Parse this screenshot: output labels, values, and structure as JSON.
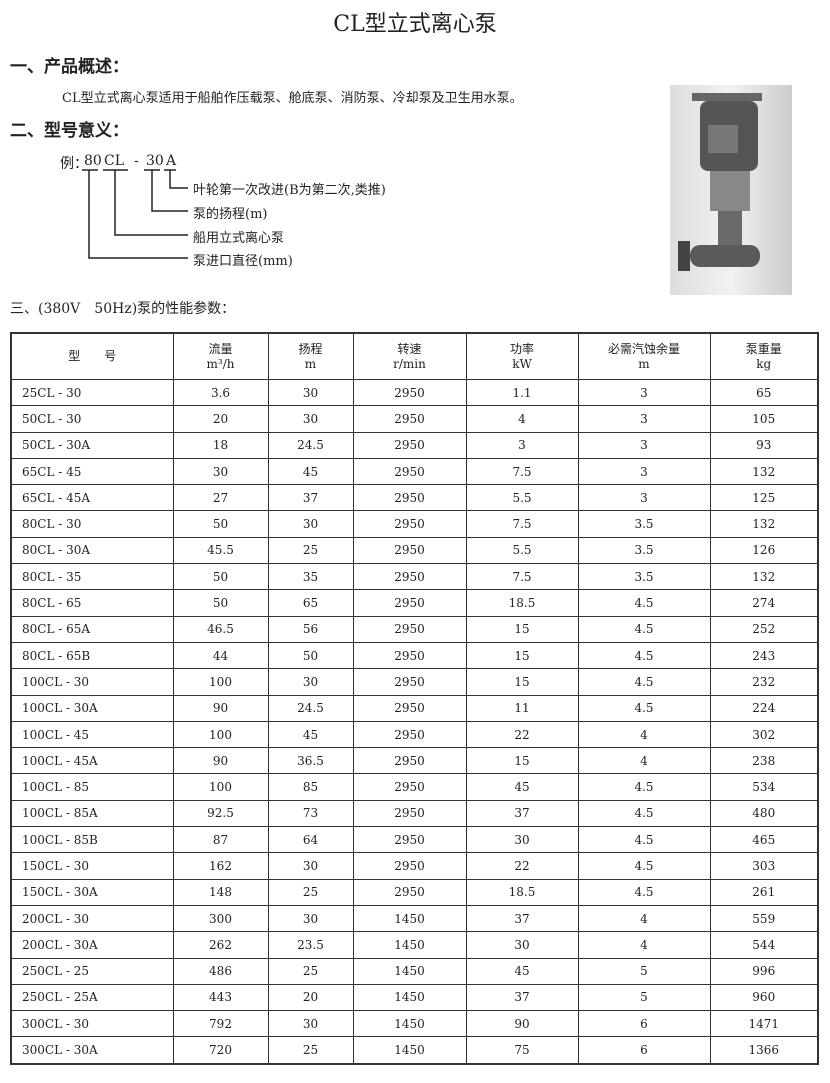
{
  "title": "CL型立式离心泵",
  "section1": {
    "heading": "一、产品概述：",
    "text": "CL型立式离心泵适用于船舶作压载泵、舱底泵、消防泵、冷却泵及卫生用水泵。"
  },
  "section2": {
    "heading": "二、型号意义：",
    "example_prefix": "例：",
    "parts": [
      "80",
      "CL",
      "-",
      "30",
      "A"
    ],
    "labels": [
      "叶轮第一次改进(B为第二次,类推)",
      "泵的扬程(m)",
      "船用立式离心泵",
      "泵进口直径(mm)"
    ]
  },
  "section3": {
    "heading": "三、(380V　50Hz)泵的性能参数："
  },
  "table": {
    "headers": [
      [
        "型　　号",
        ""
      ],
      [
        "流量",
        "m³/h"
      ],
      [
        "扬程",
        "m"
      ],
      [
        "转速",
        "r/min"
      ],
      [
        "功率",
        "kW"
      ],
      [
        "必需汽蚀余量",
        "m"
      ],
      [
        "泵重量",
        "kg"
      ]
    ],
    "rows": [
      [
        "25CL - 30",
        "3.6",
        "30",
        "2950",
        "1.1",
        "3",
        "65"
      ],
      [
        "50CL - 30",
        "20",
        "30",
        "2950",
        "4",
        "3",
        "105"
      ],
      [
        "50CL - 30A",
        "18",
        "24.5",
        "2950",
        "3",
        "3",
        "93"
      ],
      [
        "65CL - 45",
        "30",
        "45",
        "2950",
        "7.5",
        "3",
        "132"
      ],
      [
        "65CL - 45A",
        "27",
        "37",
        "2950",
        "5.5",
        "3",
        "125"
      ],
      [
        "80CL - 30",
        "50",
        "30",
        "2950",
        "7.5",
        "3.5",
        "132"
      ],
      [
        "80CL - 30A",
        "45.5",
        "25",
        "2950",
        "5.5",
        "3.5",
        "126"
      ],
      [
        "80CL - 35",
        "50",
        "35",
        "2950",
        "7.5",
        "3.5",
        "132"
      ],
      [
        "80CL - 65",
        "50",
        "65",
        "2950",
        "18.5",
        "4.5",
        "274"
      ],
      [
        "80CL - 65A",
        "46.5",
        "56",
        "2950",
        "15",
        "4.5",
        "252"
      ],
      [
        "80CL - 65B",
        "44",
        "50",
        "2950",
        "15",
        "4.5",
        "243"
      ],
      [
        "100CL - 30",
        "100",
        "30",
        "2950",
        "15",
        "4.5",
        "232"
      ],
      [
        "100CL - 30A",
        "90",
        "24.5",
        "2950",
        "11",
        "4.5",
        "224"
      ],
      [
        "100CL - 45",
        "100",
        "45",
        "2950",
        "22",
        "4",
        "302"
      ],
      [
        "100CL - 45A",
        "90",
        "36.5",
        "2950",
        "15",
        "4",
        "238"
      ],
      [
        "100CL - 85",
        "100",
        "85",
        "2950",
        "45",
        "4.5",
        "534"
      ],
      [
        "100CL - 85A",
        "92.5",
        "73",
        "2950",
        "37",
        "4.5",
        "480"
      ],
      [
        "100CL - 85B",
        "87",
        "64",
        "2950",
        "30",
        "4.5",
        "465"
      ],
      [
        "150CL - 30",
        "162",
        "30",
        "2950",
        "22",
        "4.5",
        "303"
      ],
      [
        "150CL - 30A",
        "148",
        "25",
        "2950",
        "18.5",
        "4.5",
        "261"
      ],
      [
        "200CL - 30",
        "300",
        "30",
        "1450",
        "37",
        "4",
        "559"
      ],
      [
        "200CL - 30A",
        "262",
        "23.5",
        "1450",
        "30",
        "4",
        "544"
      ],
      [
        "250CL - 25",
        "486",
        "25",
        "1450",
        "45",
        "5",
        "996"
      ],
      [
        "250CL - 25A",
        "443",
        "20",
        "1450",
        "37",
        "5",
        "960"
      ],
      [
        "300CL - 30",
        "792",
        "30",
        "1450",
        "90",
        "6",
        "1471"
      ],
      [
        "300CL - 30A",
        "720",
        "25",
        "1450",
        "75",
        "6",
        "1366"
      ]
    ]
  }
}
